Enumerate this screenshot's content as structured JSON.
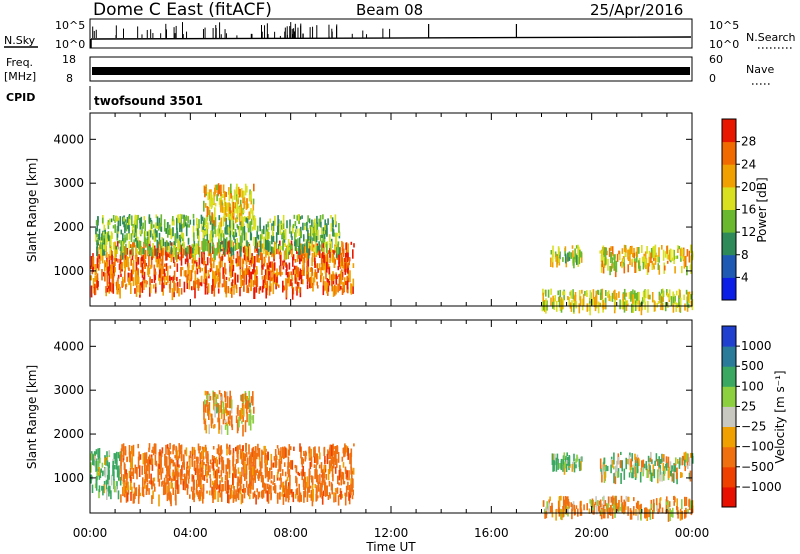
{
  "header": {
    "station": "Dome C East (fitACF)",
    "beam": "Beam 08",
    "date": "25/Apr/2016"
  },
  "status_panels": {
    "nsky": {
      "label": "N.Sky",
      "axis_labels": [
        "10^5",
        "10^0"
      ],
      "right_label": "N.Search",
      "right_axis_labels": [
        "10^5",
        "10^0"
      ],
      "legend_style": "dotted"
    },
    "freq": {
      "label_lines": [
        "Freq.",
        "[MHz]"
      ],
      "axis_labels": [
        "18",
        "8"
      ],
      "right_label": "Nave",
      "right_axis_labels": [
        "60",
        "0"
      ],
      "legend_style": "dotted"
    },
    "cpid": {
      "label": "CPID",
      "value": "twofsound 3501"
    }
  },
  "time_axis": {
    "title": "Time UT",
    "ticks": [
      "00:00",
      "04:00",
      "08:00",
      "12:00",
      "16:00",
      "20:00",
      "00:00"
    ]
  },
  "chart_data": [
    {
      "type": "heatmap",
      "panel": "power",
      "ylabel": "Slant Range [km]",
      "yticks": [
        "1000",
        "2000",
        "3000",
        "4000"
      ],
      "ylim": [
        200,
        4600
      ],
      "xlim_hours": [
        0,
        24
      ],
      "colorbar": {
        "title": "Power [dB]",
        "tick_labels": [
          "4",
          "8",
          "12",
          "16",
          "20",
          "24",
          "28"
        ],
        "colors": [
          "#0a1ee8",
          "#1e5ab4",
          "#2f8a5a",
          "#6ab82e",
          "#d8e020",
          "#f0a000",
          "#f06a00",
          "#e81800"
        ]
      },
      "echo_regions": [
        {
          "t_start": 0.0,
          "t_end": 10.5,
          "range_min": 600,
          "range_max": 1700,
          "level": 24
        },
        {
          "t_start": 0.2,
          "t_end": 10.0,
          "range_min": 1500,
          "range_max": 2300,
          "level": 12
        },
        {
          "t_start": 4.5,
          "t_end": 6.5,
          "range_min": 2200,
          "range_max": 3000,
          "level": 18
        },
        {
          "t_start": 18.3,
          "t_end": 19.6,
          "range_min": 1300,
          "range_max": 1600,
          "level": 14
        },
        {
          "t_start": 20.3,
          "t_end": 24.0,
          "range_min": 1100,
          "range_max": 1600,
          "level": 18
        },
        {
          "t_start": 18.0,
          "t_end": 24.0,
          "range_min": 250,
          "range_max": 600,
          "level": 16
        }
      ]
    },
    {
      "type": "heatmap",
      "panel": "velocity",
      "ylabel": "Slant Range [km]",
      "yticks": [
        "1000",
        "2000",
        "3000",
        "4000"
      ],
      "ylim": [
        200,
        4600
      ],
      "xlim_hours": [
        0,
        24
      ],
      "colorbar": {
        "title": "Velocity [m s⁻¹]",
        "tick_labels": [
          "1000",
          "500",
          "100",
          "25",
          "−25",
          "−100",
          "−500",
          "−1000"
        ],
        "colors": [
          "#2040d0",
          "#2a7a9a",
          "#3aa860",
          "#8cd040",
          "#c8c8c0",
          "#f0a000",
          "#f07010",
          "#f04000",
          "#e81000"
        ]
      },
      "echo_regions": [
        {
          "t_start": 0.0,
          "t_end": 1.2,
          "range_min": 700,
          "range_max": 1700,
          "velocity": 200
        },
        {
          "t_start": 1.2,
          "t_end": 10.5,
          "range_min": 600,
          "range_max": 1800,
          "velocity": -300
        },
        {
          "t_start": 4.5,
          "t_end": 6.5,
          "range_min": 2200,
          "range_max": 3000,
          "velocity": -100
        },
        {
          "t_start": 18.3,
          "t_end": 19.6,
          "range_min": 1300,
          "range_max": 1600,
          "velocity": 150
        },
        {
          "t_start": 20.3,
          "t_end": 24.0,
          "range_min": 1100,
          "range_max": 1600,
          "velocity": 50
        },
        {
          "t_start": 18.0,
          "t_end": 24.0,
          "range_min": 250,
          "range_max": 600,
          "velocity": -150
        }
      ]
    }
  ]
}
